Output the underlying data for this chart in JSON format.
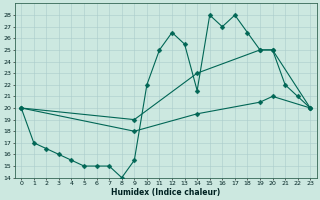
{
  "title": "",
  "xlabel": "Humidex (Indice chaleur)",
  "bg_color": "#cce8e0",
  "grid_color": "#aacccc",
  "line_color": "#006655",
  "xlim": [
    -0.5,
    23.5
  ],
  "ylim": [
    14,
    29
  ],
  "yticks": [
    14,
    15,
    16,
    17,
    18,
    19,
    20,
    21,
    22,
    23,
    24,
    25,
    26,
    27,
    28
  ],
  "xticks": [
    0,
    1,
    2,
    3,
    4,
    5,
    6,
    7,
    8,
    9,
    10,
    11,
    12,
    13,
    14,
    15,
    16,
    17,
    18,
    19,
    20,
    21,
    22,
    23
  ],
  "line1_x": [
    0,
    1,
    2,
    3,
    4,
    5,
    6,
    7,
    8,
    9,
    10,
    11,
    12,
    13,
    14,
    15,
    16,
    17,
    18,
    19,
    20,
    21,
    22,
    23
  ],
  "line1_y": [
    20.0,
    17.0,
    16.5,
    16.0,
    15.5,
    15.0,
    15.0,
    15.0,
    14.0,
    15.5,
    22.0,
    25.0,
    26.5,
    25.5,
    21.5,
    28.0,
    27.0,
    28.0,
    26.5,
    25.0,
    25.0,
    22.0,
    21.0,
    20.0
  ],
  "line2_x": [
    0,
    9,
    14,
    19,
    20,
    23
  ],
  "line2_y": [
    20.0,
    19.0,
    23.0,
    25.0,
    25.0,
    20.0
  ],
  "line3_x": [
    0,
    9,
    14,
    19,
    20,
    23
  ],
  "line3_y": [
    20.0,
    18.0,
    19.5,
    20.5,
    21.0,
    20.0
  ]
}
